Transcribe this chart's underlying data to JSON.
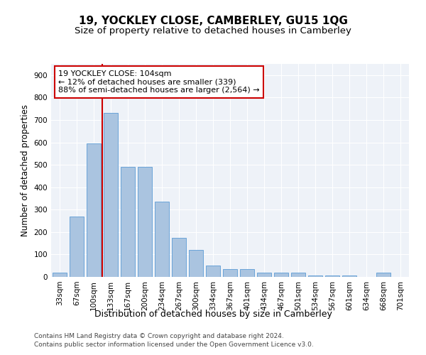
{
  "title1": "19, YOCKLEY CLOSE, CAMBERLEY, GU15 1QG",
  "title2": "Size of property relative to detached houses in Camberley",
  "xlabel": "Distribution of detached houses by size in Camberley",
  "ylabel": "Number of detached properties",
  "categories": [
    "33sqm",
    "67sqm",
    "100sqm",
    "133sqm",
    "167sqm",
    "200sqm",
    "234sqm",
    "267sqm",
    "300sqm",
    "334sqm",
    "367sqm",
    "401sqm",
    "434sqm",
    "467sqm",
    "501sqm",
    "534sqm",
    "567sqm",
    "601sqm",
    "634sqm",
    "668sqm",
    "701sqm"
  ],
  "values": [
    20,
    270,
    595,
    730,
    490,
    490,
    335,
    175,
    120,
    50,
    35,
    35,
    20,
    18,
    18,
    5,
    5,
    5,
    0,
    20,
    0
  ],
  "bar_color": "#aac4e0",
  "bar_edge_color": "#5b9bd5",
  "vline_color": "#cc0000",
  "vline_pos": 2.5,
  "annotation_text": "19 YOCKLEY CLOSE: 104sqm\n← 12% of detached houses are smaller (339)\n88% of semi-detached houses are larger (2,564) →",
  "annotation_box_color": "#ffffff",
  "annotation_box_edge_color": "#cc0000",
  "ylim": [
    0,
    950
  ],
  "yticks": [
    0,
    100,
    200,
    300,
    400,
    500,
    600,
    700,
    800,
    900
  ],
  "footer1": "Contains HM Land Registry data © Crown copyright and database right 2024.",
  "footer2": "Contains public sector information licensed under the Open Government Licence v3.0.",
  "background_color": "#eef2f8",
  "grid_color": "#ffffff",
  "title1_fontsize": 11,
  "title2_fontsize": 9.5,
  "xlabel_fontsize": 9,
  "ylabel_fontsize": 8.5,
  "tick_fontsize": 7.5,
  "annotation_fontsize": 8,
  "footer_fontsize": 6.5
}
